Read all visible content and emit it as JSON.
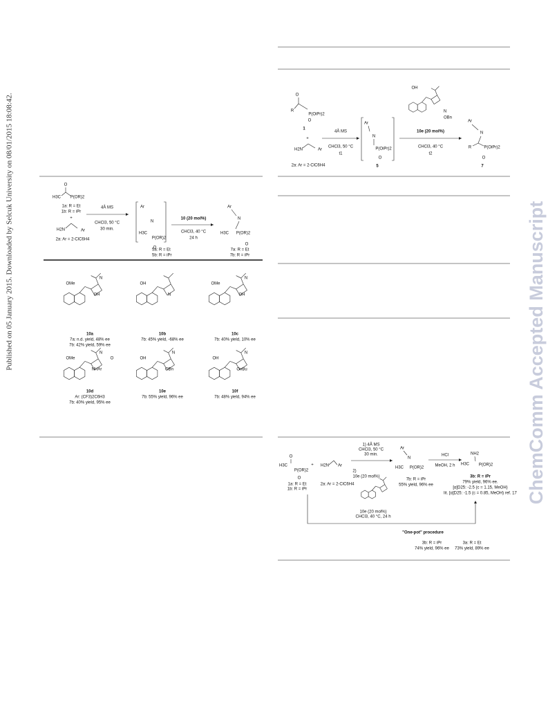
{
  "side_note": "Published on 05 January 2015. Downloaded by Selcuk University on 08/01/2015 18:08:42.",
  "watermark": "ChemComm Accepted Manuscript",
  "scheme_top": {
    "r": "R",
    "phosphonate": "P(OiPr)2",
    "o": "O",
    "ketone": "1",
    "plus": "+",
    "amine": "H2N",
    "ar": "Ar",
    "amine_label": "2a: Ar = 2-ClC6H4",
    "step1": [
      "4Å MS",
      "CHCl3, 50 °C",
      "t1"
    ],
    "n": "N",
    "imine": "5",
    "step2": [
      "10e (20 mol%)",
      "CHCl3, 40 °C",
      "t2"
    ],
    "product": "7",
    "oh": "OH",
    "obn": "OBn"
  },
  "scheme_left": {
    "h3c": "H3C",
    "phosphonate": "P(OR)2",
    "o": "O",
    "ketones": [
      "1a: R = Et",
      "1b: R = iPr"
    ],
    "plus": "+",
    "amine": "H2N",
    "ar": "Ar",
    "amine_label": "2a: Ar = 2-ClC6H4",
    "step1": [
      "4Å MS",
      "CHCl3, 50 °C",
      "30 min."
    ],
    "n": "N",
    "imines": [
      "5a: R = Et",
      "5b: R = iPr"
    ],
    "step2": [
      "10 (20 mol%)",
      "CHCl3, 40 °C",
      "24 h"
    ],
    "products": [
      "7a: R = Et",
      "7b: R = iPr"
    ]
  },
  "catalysts": [
    {
      "id": "10a",
      "results": [
        "7a: n.d. yield, 48% ee",
        "7b: 42% yield, 59% ee"
      ],
      "groups": [
        "OMe",
        "OH",
        "N"
      ]
    },
    {
      "id": "10b",
      "results": [
        "7b: 45% yield, -68% ee"
      ],
      "groups": [
        "OH",
        "N"
      ]
    },
    {
      "id": "10c",
      "results": [
        "7b: 40% yield, 10% ee"
      ],
      "groups": [
        "OMe",
        "OH",
        "N"
      ]
    },
    {
      "id": "10d",
      "results": [
        "Ar: (CF3)2C6H3",
        "7b: 40% yield, 95% ee"
      ],
      "groups": [
        "OMe",
        "NHAr",
        "N",
        "O"
      ]
    },
    {
      "id": "10e",
      "results": [
        "7b: 55% yield, 96% ee"
      ],
      "groups": [
        "OH",
        "OBn",
        "N"
      ]
    },
    {
      "id": "10f",
      "results": [
        "7b: 48% yield, 94% ee"
      ],
      "groups": [
        "OH",
        "OnBu",
        "N"
      ]
    }
  ],
  "scheme_bottom": {
    "h3c": "H3C",
    "phosphonate": "P(OR)2",
    "o": "O",
    "ketones": [
      "1a: R = Et",
      "1b: R = iPr"
    ],
    "plus": "+",
    "amine": "H2N",
    "ar": "Ar",
    "amine_label": "2a: Ar = 2-ClC6H4",
    "step1": [
      "1) 4Å MS",
      "CHCl3, 50 °C",
      "30 min."
    ],
    "step2": "2)",
    "catalyst": [
      "10e (20 mol%)",
      "CHCl3, 40 °C, 24 h"
    ],
    "intermediate": [
      "7b: R = iPr",
      "55% yield, 96% ee"
    ],
    "n": "N",
    "reagent": [
      "HCl",
      "MeOH, 2 h"
    ],
    "nh2": "NH2",
    "product": [
      "3b: R = iPr",
      "79% yield, 96% ee.",
      "[α]D25: -2.5 (c = 1.15, MeOH)",
      "lit. [α]D25: -1.5 (c = 0.85, MeOH) ref. 17"
    ],
    "one_pot": "\"One-pot\" procedure",
    "one_pot_b": [
      "3b: R = iPr",
      "74% yield, 96% ee"
    ],
    "one_pot_a": [
      "3a: R = Et",
      "73% yield, 89% ee"
    ]
  }
}
